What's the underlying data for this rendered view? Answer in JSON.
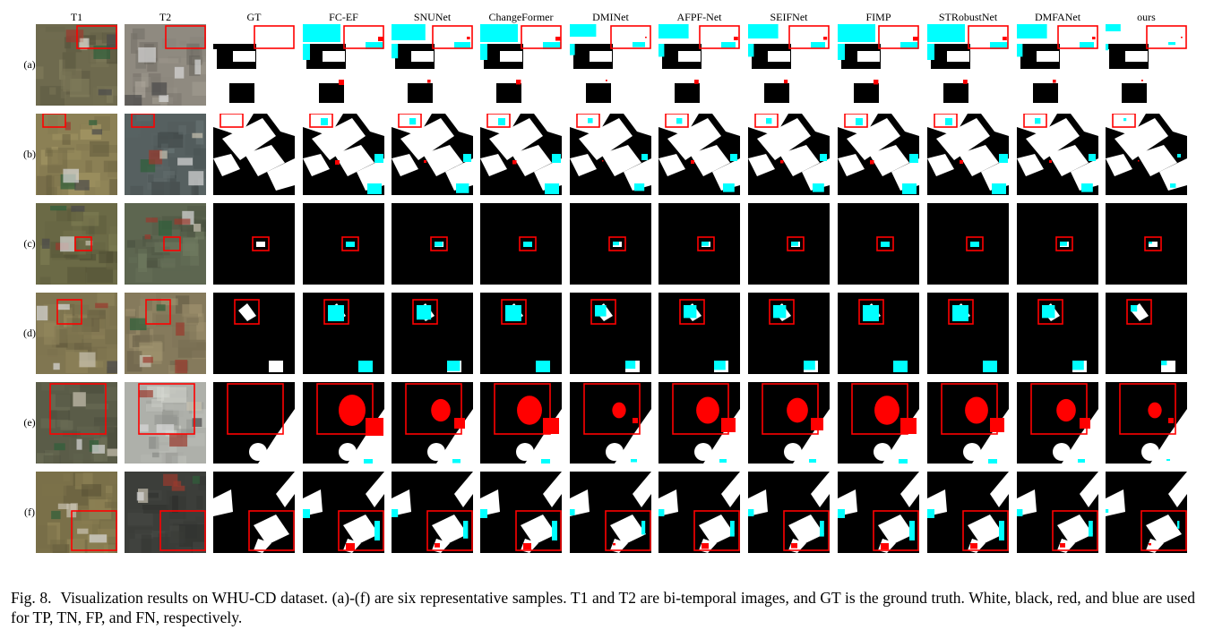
{
  "figure": {
    "columns": [
      "T1",
      "T2",
      "GT",
      "FC-EF",
      "SNUNet",
      "ChangeFormer",
      "DMINet",
      "AFPF-Net",
      "SEIFNet",
      "FIMP",
      "STRobustNet",
      "DMFANet",
      "ours"
    ],
    "rows": [
      "(a)",
      "(b)",
      "(c)",
      "(d)",
      "(e)",
      "(f)"
    ],
    "legend_colors": {
      "TP": "#ffffff",
      "TN": "#000000",
      "FP": "#ff0000",
      "FN": "#00ffff"
    },
    "highlight_box_color": "#ff0000"
  },
  "caption": {
    "label": "Fig. 8.",
    "text": "Visualization results on WHU-CD dataset. (a)-(f) are six representative samples. T1 and T2 are bi-temporal images, and GT is the ground truth. White, black, red, and blue are used for TP, TN, FP, and FN, respectively."
  }
}
